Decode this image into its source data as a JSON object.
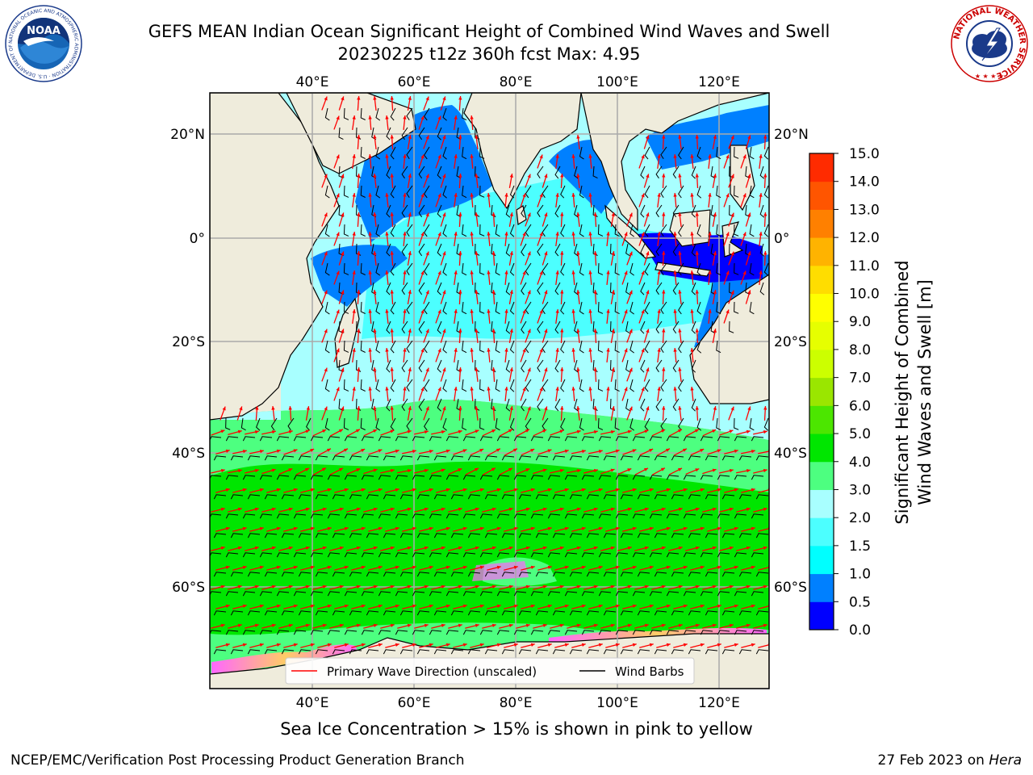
{
  "header": {
    "title_line1": "GEFS MEAN Indian Ocean Significant Height of Combined Wind Waves and Swell",
    "title_line2": "20230225 t12z 360h fcst   Max: 4.95"
  },
  "map": {
    "lon_ticks": [
      "40°E",
      "60°E",
      "80°E",
      "100°E",
      "120°E"
    ],
    "lat_ticks": [
      "20°N",
      "0°",
      "20°S",
      "40°S",
      "60°S"
    ],
    "extent": {
      "lon_min": 20,
      "lon_max": 130,
      "lat_min": -72,
      "lat_max": 28
    },
    "colors": {
      "land": "#efecdc",
      "coast": "#000000",
      "grid": "#aaaaaa",
      "wave_arrow": "#ff0000",
      "wind_barb": "#000000"
    }
  },
  "legend": {
    "items": [
      {
        "label": "Primary Wave Direction (unscaled)",
        "color": "#ff0000"
      },
      {
        "label": "Wind Barbs",
        "color": "#000000"
      }
    ]
  },
  "colorbar": {
    "label_line1": "Significant Height of Combined",
    "label_line2": "Wind Waves and Swell [m]",
    "ticks": [
      "0.0",
      "0.5",
      "1.0",
      "1.5",
      "2.0",
      "3.0",
      "4.0",
      "5.0",
      "6.0",
      "7.0",
      "8.0",
      "9.0",
      "10.0",
      "11.0",
      "12.0",
      "13.0",
      "14.0",
      "15.0"
    ],
    "colors": [
      "#0000ff",
      "#0080ff",
      "#00ffff",
      "#4cffff",
      "#a8ffff",
      "#4dff80",
      "#00e600",
      "#4ce600",
      "#9ae600",
      "#ccff00",
      "#e6ff00",
      "#ffff00",
      "#ffdd00",
      "#ffb300",
      "#ff8000",
      "#ff5500",
      "#ff2b00"
    ]
  },
  "caption": "Sea Ice Concentration > 15% is shown in pink to yellow",
  "footer": {
    "left": "NCEP/EMC/Verification Post Processing Product Generation Branch",
    "right_date": "27 Feb 2023 on ",
    "right_machine": "Hera"
  },
  "logos": {
    "noaa_text": "NOAA",
    "noaa_ring": "NATIONAL OCEANIC AND ATMOSPHERIC ADMINISTRATION · U.S. DEPARTMENT OF COMMERCE",
    "nws_ring": "NATIONAL WEATHER SERVICE"
  }
}
